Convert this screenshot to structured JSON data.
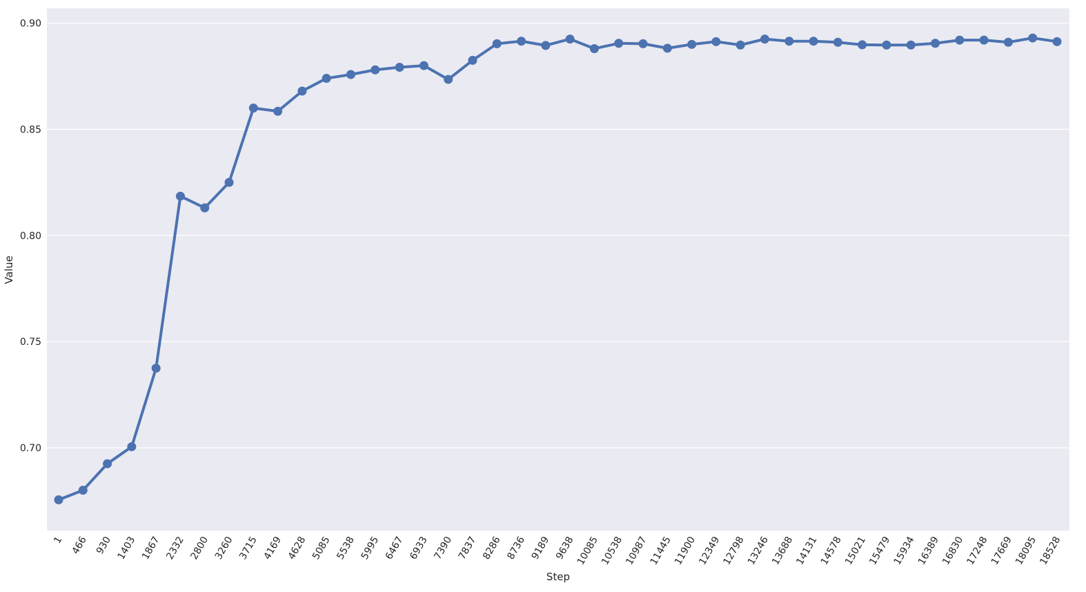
{
  "chart_data": {
    "type": "line",
    "xlabel": "Step",
    "ylabel": "Value",
    "ylim": [
      0.661,
      0.907
    ],
    "yticks": [
      "0.70",
      "0.75",
      "0.80",
      "0.85",
      "0.90"
    ],
    "grid": true,
    "x": [
      "1",
      "466",
      "930",
      "1403",
      "1867",
      "2332",
      "2800",
      "3260",
      "3715",
      "4169",
      "4628",
      "5085",
      "5538",
      "5995",
      "6467",
      "6933",
      "7390",
      "7837",
      "8286",
      "8736",
      "9189",
      "9638",
      "10085",
      "10538",
      "10987",
      "11445",
      "11900",
      "12349",
      "12798",
      "13246",
      "13688",
      "14131",
      "14578",
      "15021",
      "15479",
      "15934",
      "16389",
      "16830",
      "17248",
      "17669",
      "18095",
      "18528"
    ],
    "series": [
      {
        "values": [
          0.6755,
          0.68,
          0.6925,
          0.7005,
          0.7375,
          0.8185,
          0.813,
          0.825,
          0.86,
          0.8585,
          0.868,
          0.874,
          0.8758,
          0.878,
          0.8792,
          0.88,
          0.8735,
          0.8825,
          0.8903,
          0.8915,
          0.8895,
          0.8925,
          0.888,
          0.8905,
          0.8903,
          0.8882,
          0.89,
          0.8913,
          0.8897,
          0.8925,
          0.8915,
          0.8915,
          0.891,
          0.8898,
          0.8897,
          0.8897,
          0.8905,
          0.892,
          0.892,
          0.891,
          0.893,
          0.8913
        ],
        "color": "#4c72b0"
      }
    ]
  }
}
